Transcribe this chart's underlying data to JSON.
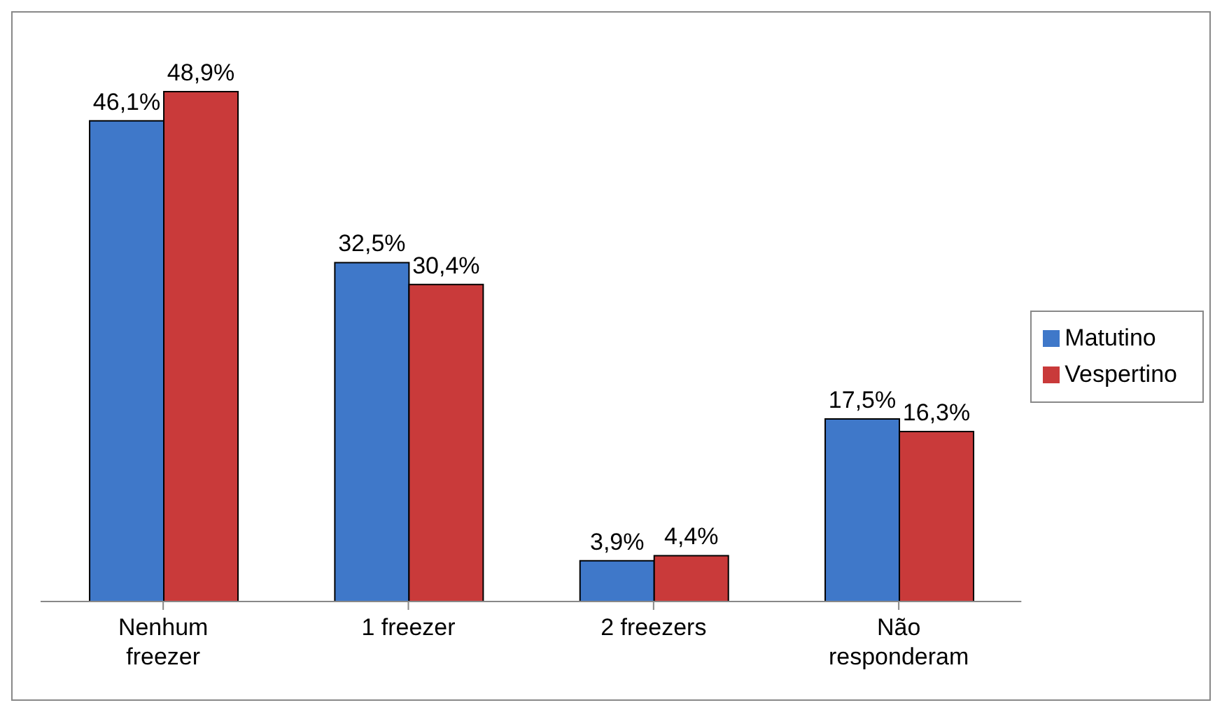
{
  "chart_data": {
    "type": "bar",
    "tick_labels": "x",
    "categories": [
      "Nenhum freezer",
      "1 freezer",
      "2 freezers",
      "Não responderam"
    ],
    "series": [
      {
        "name": "Matutino",
        "color": "#3f78c9",
        "values": [
          46.1,
          32.5,
          3.9,
          17.5
        ],
        "value_labels": [
          "46,1%",
          "32,5%",
          "3,9%",
          "17,5%"
        ]
      },
      {
        "name": "Vespertino",
        "color": "#c93a3a",
        "values": [
          48.9,
          30.4,
          4.4,
          16.3
        ],
        "value_labels": [
          "48,9%",
          "30,4%",
          "4,4%",
          "16,3%"
        ]
      }
    ],
    "legend": "right"
  }
}
